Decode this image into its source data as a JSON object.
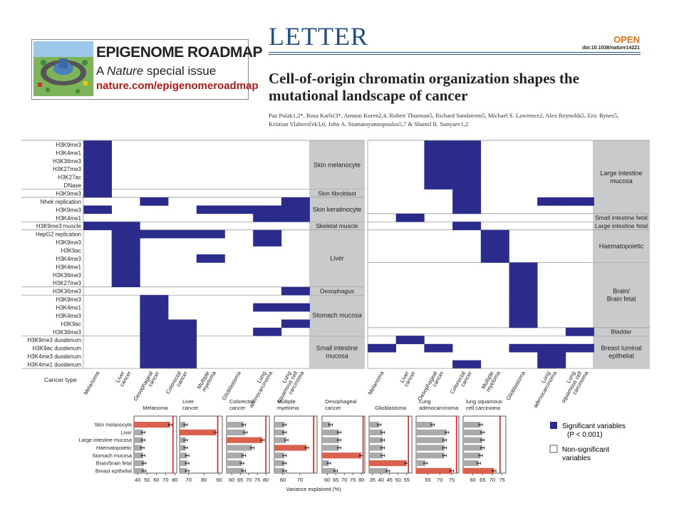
{
  "banner": {
    "title": "EPIGENOME ROADMAP",
    "subtitle_prefix": "A ",
    "subtitle_italic": "Nature",
    "subtitle_suffix": " special issue",
    "url": "nature.com/epigenomeroadmap"
  },
  "header": {
    "section": "LETTER",
    "open": "OPEN",
    "doi": "doi:10.1038/nature14221"
  },
  "article": {
    "title": "Cell-of-origin chromatin organization shapes the mutational landscape of cancer",
    "authors": "Paz Polak1,2*, Rosa Karlić3*, Amnon Koren2,4, Robert Thurman5, Richard Sandstrom5, Michael S. Lawrence2, Alex Reynolds5, Eric Rynes5, Kristian Vlahoviček3,6, John A. Stamatoyannopoulos5,7 & Shamil R. Sunyaev1,2"
  },
  "colors": {
    "significant": "#2b2b8c",
    "tissue_box": "#c9cacb",
    "bar_gray": "#aaaaaa",
    "bar_red": "#d9614f",
    "redline": "#e0201a"
  },
  "left_panel": {
    "rows": [
      "H3K9me3",
      "H3K4me1",
      "H3K36me3",
      "H3K27me3",
      "H3K27ac",
      "DNase",
      "H3K9me3",
      "Nhek replication",
      "H3K9me3",
      "H3K4me1",
      "H3K9me3 muscle",
      "HepG2 replication",
      "H3K9me3",
      "H3K9ac",
      "H3K4me3",
      "H3K4me1",
      "H3K36me3",
      "H3K27me3",
      "H3K36me3",
      "H3K9me3",
      "H3K4me1",
      "H3K4me3",
      "H3K9ac",
      "H3K36me3",
      "H3K9me3 duodenum",
      "H3K9ac duodenum",
      "H3K4me3 duodenum",
      "H3K4me1 duodenum"
    ],
    "groups": [
      {
        "label": [
          "Skin melanocyte"
        ],
        "start": 0,
        "end": 6
      },
      {
        "label": [
          "Skin fibroblast"
        ],
        "start": 6,
        "end": 7
      },
      {
        "label": [
          "Skin keratinocyte"
        ],
        "start": 7,
        "end": 10
      },
      {
        "label": [
          "Skeletal muscle"
        ],
        "start": 10,
        "end": 11
      },
      {
        "label": [
          "Liver"
        ],
        "start": 11,
        "end": 18
      },
      {
        "label": [
          "Oesophagus"
        ],
        "start": 18,
        "end": 19
      },
      {
        "label": [
          "Stomach mucosa"
        ],
        "start": 19,
        "end": 24
      },
      {
        "label": [
          "Small intestine",
          "mucosa"
        ],
        "start": 24,
        "end": 28
      }
    ],
    "columns": [
      [
        "Melanoma"
      ],
      [
        "Liver",
        "cancer"
      ],
      [
        "Oesophageal",
        "cancer"
      ],
      [
        "Colorectal",
        "cancer"
      ],
      [
        "Multiple",
        "myeloma"
      ],
      [
        "Glioblastoma"
      ],
      [
        "Lung",
        "adenocarcinoma"
      ],
      [
        "Lung",
        "squamous cell",
        "carcinoma"
      ]
    ],
    "cells": [
      [
        0,
        0
      ],
      [
        0,
        1
      ],
      [
        0,
        2
      ],
      [
        0,
        3
      ],
      [
        0,
        4
      ],
      [
        0,
        5
      ],
      [
        0,
        6
      ],
      [
        2,
        7
      ],
      [
        7,
        7
      ],
      [
        0,
        8
      ],
      [
        4,
        8
      ],
      [
        5,
        8
      ],
      [
        6,
        8
      ],
      [
        7,
        8
      ],
      [
        6,
        9
      ],
      [
        7,
        9
      ],
      [
        0,
        10
      ],
      [
        1,
        10
      ],
      [
        1,
        11
      ],
      [
        2,
        11
      ],
      [
        3,
        11
      ],
      [
        4,
        11
      ],
      [
        6,
        11
      ],
      [
        1,
        12
      ],
      [
        6,
        12
      ],
      [
        1,
        13
      ],
      [
        1,
        14
      ],
      [
        4,
        14
      ],
      [
        1,
        15
      ],
      [
        1,
        16
      ],
      [
        1,
        17
      ],
      [
        7,
        18
      ],
      [
        2,
        19
      ],
      [
        2,
        20
      ],
      [
        6,
        20
      ],
      [
        7,
        20
      ],
      [
        2,
        21
      ],
      [
        2,
        22
      ],
      [
        3,
        22
      ],
      [
        7,
        22
      ],
      [
        2,
        23
      ],
      [
        3,
        23
      ],
      [
        6,
        23
      ],
      [
        2,
        24
      ],
      [
        3,
        24
      ],
      [
        2,
        25
      ],
      [
        3,
        25
      ],
      [
        2,
        26
      ],
      [
        3,
        26
      ],
      [
        2,
        27
      ],
      [
        3,
        27
      ]
    ]
  },
  "right_panel": {
    "rows": 28,
    "groups": [
      {
        "label": [
          "Large intestine",
          "mucosa"
        ],
        "start": 0,
        "end": 9
      },
      {
        "label": [
          "Small intestine fetal"
        ],
        "start": 9,
        "end": 10
      },
      {
        "label": [
          "Large intestine fetal"
        ],
        "start": 10,
        "end": 11
      },
      {
        "label": [
          "Haematopoietic"
        ],
        "start": 11,
        "end": 15
      },
      {
        "label": [
          "Brain/",
          "Brain fetal"
        ],
        "start": 15,
        "end": 23
      },
      {
        "label": [
          "Bladder"
        ],
        "start": 23,
        "end": 24
      },
      {
        "label": [
          "Breast luminal",
          "epithelial"
        ],
        "start": 24,
        "end": 28
      }
    ],
    "columns": [
      [
        "Melanoma"
      ],
      [
        "Liver",
        "cancer"
      ],
      [
        "Oesophageal",
        "cancer"
      ],
      [
        "Colorectal",
        "cancer"
      ],
      [
        "Multiple",
        "myeloma"
      ],
      [
        "Glioblastoma"
      ],
      [
        "Lung",
        "adenocarcinoma"
      ],
      [
        "Lung",
        "squamous cell",
        "carcinoma"
      ]
    ],
    "cells": [
      [
        2,
        0
      ],
      [
        3,
        0
      ],
      [
        2,
        1
      ],
      [
        3,
        1
      ],
      [
        2,
        2
      ],
      [
        3,
        2
      ],
      [
        2,
        3
      ],
      [
        3,
        3
      ],
      [
        2,
        4
      ],
      [
        3,
        4
      ],
      [
        2,
        5
      ],
      [
        3,
        5
      ],
      [
        3,
        6
      ],
      [
        3,
        7
      ],
      [
        6,
        7
      ],
      [
        7,
        7
      ],
      [
        3,
        8
      ],
      [
        1,
        9
      ],
      [
        3,
        10
      ],
      [
        4,
        11
      ],
      [
        4,
        12
      ],
      [
        4,
        13
      ],
      [
        4,
        14
      ],
      [
        5,
        15
      ],
      [
        5,
        16
      ],
      [
        5,
        17
      ],
      [
        5,
        18
      ],
      [
        5,
        19
      ],
      [
        5,
        20
      ],
      [
        5,
        21
      ],
      [
        5,
        22
      ],
      [
        7,
        23
      ],
      [
        1,
        24
      ],
      [
        0,
        25
      ],
      [
        2,
        25
      ],
      [
        5,
        25
      ],
      [
        6,
        25
      ],
      [
        7,
        25
      ],
      [
        6,
        26
      ],
      [
        3,
        27
      ],
      [
        6,
        27
      ]
    ]
  },
  "cancer_type_label": "Cancer type",
  "bottom_chart": {
    "row_labels": [
      "Skin melanocyte",
      "Liver",
      "Large intestine mucosa",
      "Haematopoietic",
      "Stomach mucosa",
      "Brain/brain fetal",
      "Breast epithelial"
    ],
    "xlabel": "Variance explained (%)",
    "panels": [
      {
        "title": [
          "Melanoma"
        ],
        "ticks": [
          40,
          50,
          60,
          70,
          80
        ],
        "xlim": [
          36,
          82
        ],
        "redline": 78,
        "values": [
          75,
          46,
          46,
          45,
          46,
          47,
          47
        ],
        "highlight": 0
      },
      {
        "title": [
          "Liver",
          "cancer"
        ],
        "ticks": [
          70,
          80,
          90
        ],
        "xlim": [
          64,
          92
        ],
        "redline": 89,
        "values": [
          68,
          88,
          68,
          68,
          69,
          69,
          69
        ],
        "highlight": 1
      },
      {
        "title": [
          "Colorectal",
          "cancer"
        ],
        "ticks": [
          60,
          65,
          70,
          75,
          80
        ],
        "xlim": [
          57,
          82
        ],
        "redline": 80,
        "values": [
          67,
          68,
          78,
          72,
          67,
          66,
          67
        ],
        "highlight": 2
      },
      {
        "title": [
          "Multiple",
          "myeloma"
        ],
        "ticks": [
          60,
          70
        ],
        "xlim": [
          55,
          80
        ],
        "redline": 78,
        "values": [
          61,
          61,
          62,
          74,
          61,
          61,
          61
        ],
        "highlight": 3
      },
      {
        "title": [
          "Oesophageal",
          "cancer"
        ],
        "ticks": [
          60,
          65,
          70,
          75,
          80
        ],
        "xlim": [
          57,
          82
        ],
        "redline": 81,
        "values": [
          62,
          67,
          67,
          67,
          80,
          61,
          65
        ],
        "highlight": 4
      },
      {
        "title": [
          "Glioblastoma"
        ],
        "ticks": [
          35,
          40,
          45,
          50,
          55
        ],
        "xlim": [
          33,
          58
        ],
        "redline": 56,
        "values": [
          39,
          41,
          41,
          41,
          41,
          55,
          44
        ],
        "highlight": 5
      },
      {
        "title": [
          "Lung",
          "adenocarcinoma"
        ],
        "ticks": [
          65,
          70,
          75
        ],
        "xlim": [
          60,
          78
        ],
        "redline": 77,
        "values": [
          67,
          73,
          72,
          72,
          72,
          64,
          75
        ],
        "highlight": 6
      },
      {
        "title": [
          "lung squamous",
          "cell carcinoma"
        ],
        "ticks": [
          60,
          65,
          70,
          75
        ],
        "xlim": [
          55,
          77
        ],
        "redline": 74,
        "values": [
          64,
          65,
          65,
          65,
          64,
          63,
          71
        ],
        "highlight": 6
      }
    ]
  },
  "legend": {
    "sig_label": "Significant variables",
    "sig_p": "(P < 0.001)",
    "nonsig_label1": "Non-significant",
    "nonsig_label2": "variables"
  }
}
